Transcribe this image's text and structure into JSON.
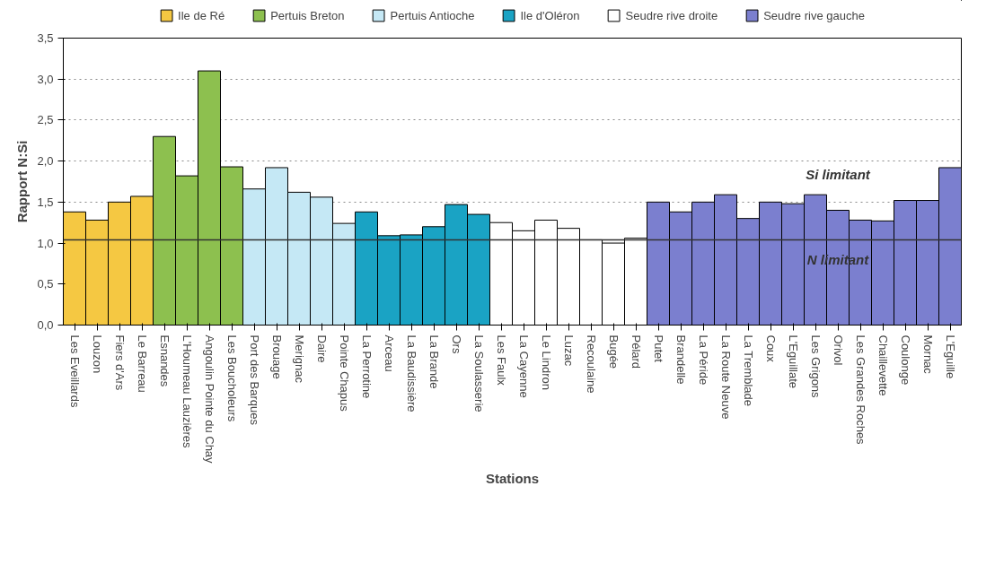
{
  "chart_data": {
    "type": "bar",
    "xlabel": "Stations",
    "ylabel": "Rapport N:Si",
    "categories": [
      "Les Eveillards",
      "Louzon",
      "Fiers d'Ars",
      "Le Barreau",
      "Esnandes",
      "L'Houmeau Lauzières",
      "Angoulin Pointe du Chay",
      "Les Boucholeurs",
      "Port des Barques",
      "Brouage",
      "Merignac",
      "Daire",
      "Pointe Chapus",
      "La Perrotine",
      "Arceau",
      "La Baudissière",
      "La Brande",
      "Ors",
      "La Soulasserie",
      "Les Faulx",
      "La Cayenne",
      "Le Lindron",
      "Luzac",
      "Recoulaine",
      "Bugée",
      "Pélard",
      "Putet",
      "Brandelle",
      "La Péride",
      "La Route Neuve",
      "La Tremblade",
      "Coux",
      "L'Eguillate",
      "Les Grigons",
      "Orivol",
      "Les Grandes Roches",
      "Chaillevette",
      "Coulonge",
      "Mornac",
      "L'Eguille"
    ],
    "series": [
      {
        "name": "Ile de Ré",
        "color": "#f5c842",
        "values": [
          1.38,
          1.28,
          1.5,
          1.57,
          null,
          null,
          null,
          null,
          null,
          null,
          null,
          null,
          null,
          null,
          null,
          null,
          null,
          null,
          null,
          null,
          null,
          null,
          null,
          null,
          null,
          null,
          null,
          null,
          null,
          null,
          null,
          null,
          null,
          null,
          null,
          null,
          null,
          null,
          null,
          null
        ]
      },
      {
        "name": "Pertuis Breton",
        "color": "#8dc04f",
        "values": [
          null,
          null,
          null,
          null,
          2.3,
          1.82,
          3.1,
          1.93,
          null,
          null,
          null,
          null,
          null,
          null,
          null,
          null,
          null,
          null,
          null,
          null,
          null,
          null,
          null,
          null,
          null,
          null,
          null,
          null,
          null,
          null,
          null,
          null,
          null,
          null,
          null,
          null,
          null,
          null,
          null,
          null
        ]
      },
      {
        "name": "Pertuis Antioche",
        "color": "#c5e8f5",
        "values": [
          null,
          null,
          null,
          null,
          null,
          null,
          null,
          null,
          1.66,
          1.92,
          1.62,
          1.56,
          1.24,
          null,
          null,
          null,
          null,
          null,
          null,
          null,
          null,
          null,
          null,
          null,
          null,
          null,
          null,
          null,
          null,
          null,
          null,
          null,
          null,
          null,
          null,
          null,
          null,
          null,
          null,
          null
        ]
      },
      {
        "name": "Ile d'Oléron",
        "color": "#1aa3c4",
        "values": [
          null,
          null,
          null,
          null,
          null,
          null,
          null,
          null,
          null,
          null,
          null,
          null,
          null,
          1.38,
          1.09,
          1.1,
          1.2,
          1.47,
          1.35,
          null,
          null,
          null,
          null,
          null,
          null,
          null,
          null,
          null,
          null,
          null,
          null,
          null,
          null,
          null,
          null,
          null,
          null,
          null,
          null,
          null
        ]
      },
      {
        "name": "Seudre rive droite",
        "color": "#ffffff",
        "values": [
          null,
          null,
          null,
          null,
          null,
          null,
          null,
          null,
          null,
          null,
          null,
          null,
          null,
          null,
          null,
          null,
          null,
          null,
          null,
          1.25,
          1.15,
          1.28,
          1.18,
          1.04,
          1.0,
          1.06,
          null,
          null,
          null,
          null,
          null,
          null,
          null,
          null,
          null,
          null,
          null,
          null,
          null,
          null
        ]
      },
      {
        "name": "Seudre rive gauche",
        "color": "#7b7fcf",
        "values": [
          null,
          null,
          null,
          null,
          null,
          null,
          null,
          null,
          null,
          null,
          null,
          null,
          null,
          null,
          null,
          null,
          null,
          null,
          null,
          null,
          null,
          null,
          null,
          null,
          null,
          null,
          1.5,
          1.38,
          1.5,
          1.59,
          1.3,
          1.5,
          1.48,
          1.59,
          1.4,
          1.28,
          1.27,
          1.52,
          1.52,
          1.92
        ]
      }
    ],
    "ylim": [
      0,
      3.5
    ],
    "yticks": [
      {
        "value": 0,
        "label": "0,0"
      },
      {
        "value": 0.5,
        "label": "0,5"
      },
      {
        "value": 1,
        "label": "1,0"
      },
      {
        "value": 1.5,
        "label": "1,5"
      },
      {
        "value": 2,
        "label": "2,0"
      },
      {
        "value": 2.5,
        "label": "2,5"
      },
      {
        "value": 3,
        "label": "3,0"
      },
      {
        "value": 3.5,
        "label": "3,5"
      }
    ],
    "ref_lines": [
      {
        "axis": "y",
        "value": 1.04,
        "color": "#333333"
      }
    ],
    "annotations": [
      "Si limitant",
      "N limitant"
    ],
    "grid": "y",
    "legend": "top"
  }
}
